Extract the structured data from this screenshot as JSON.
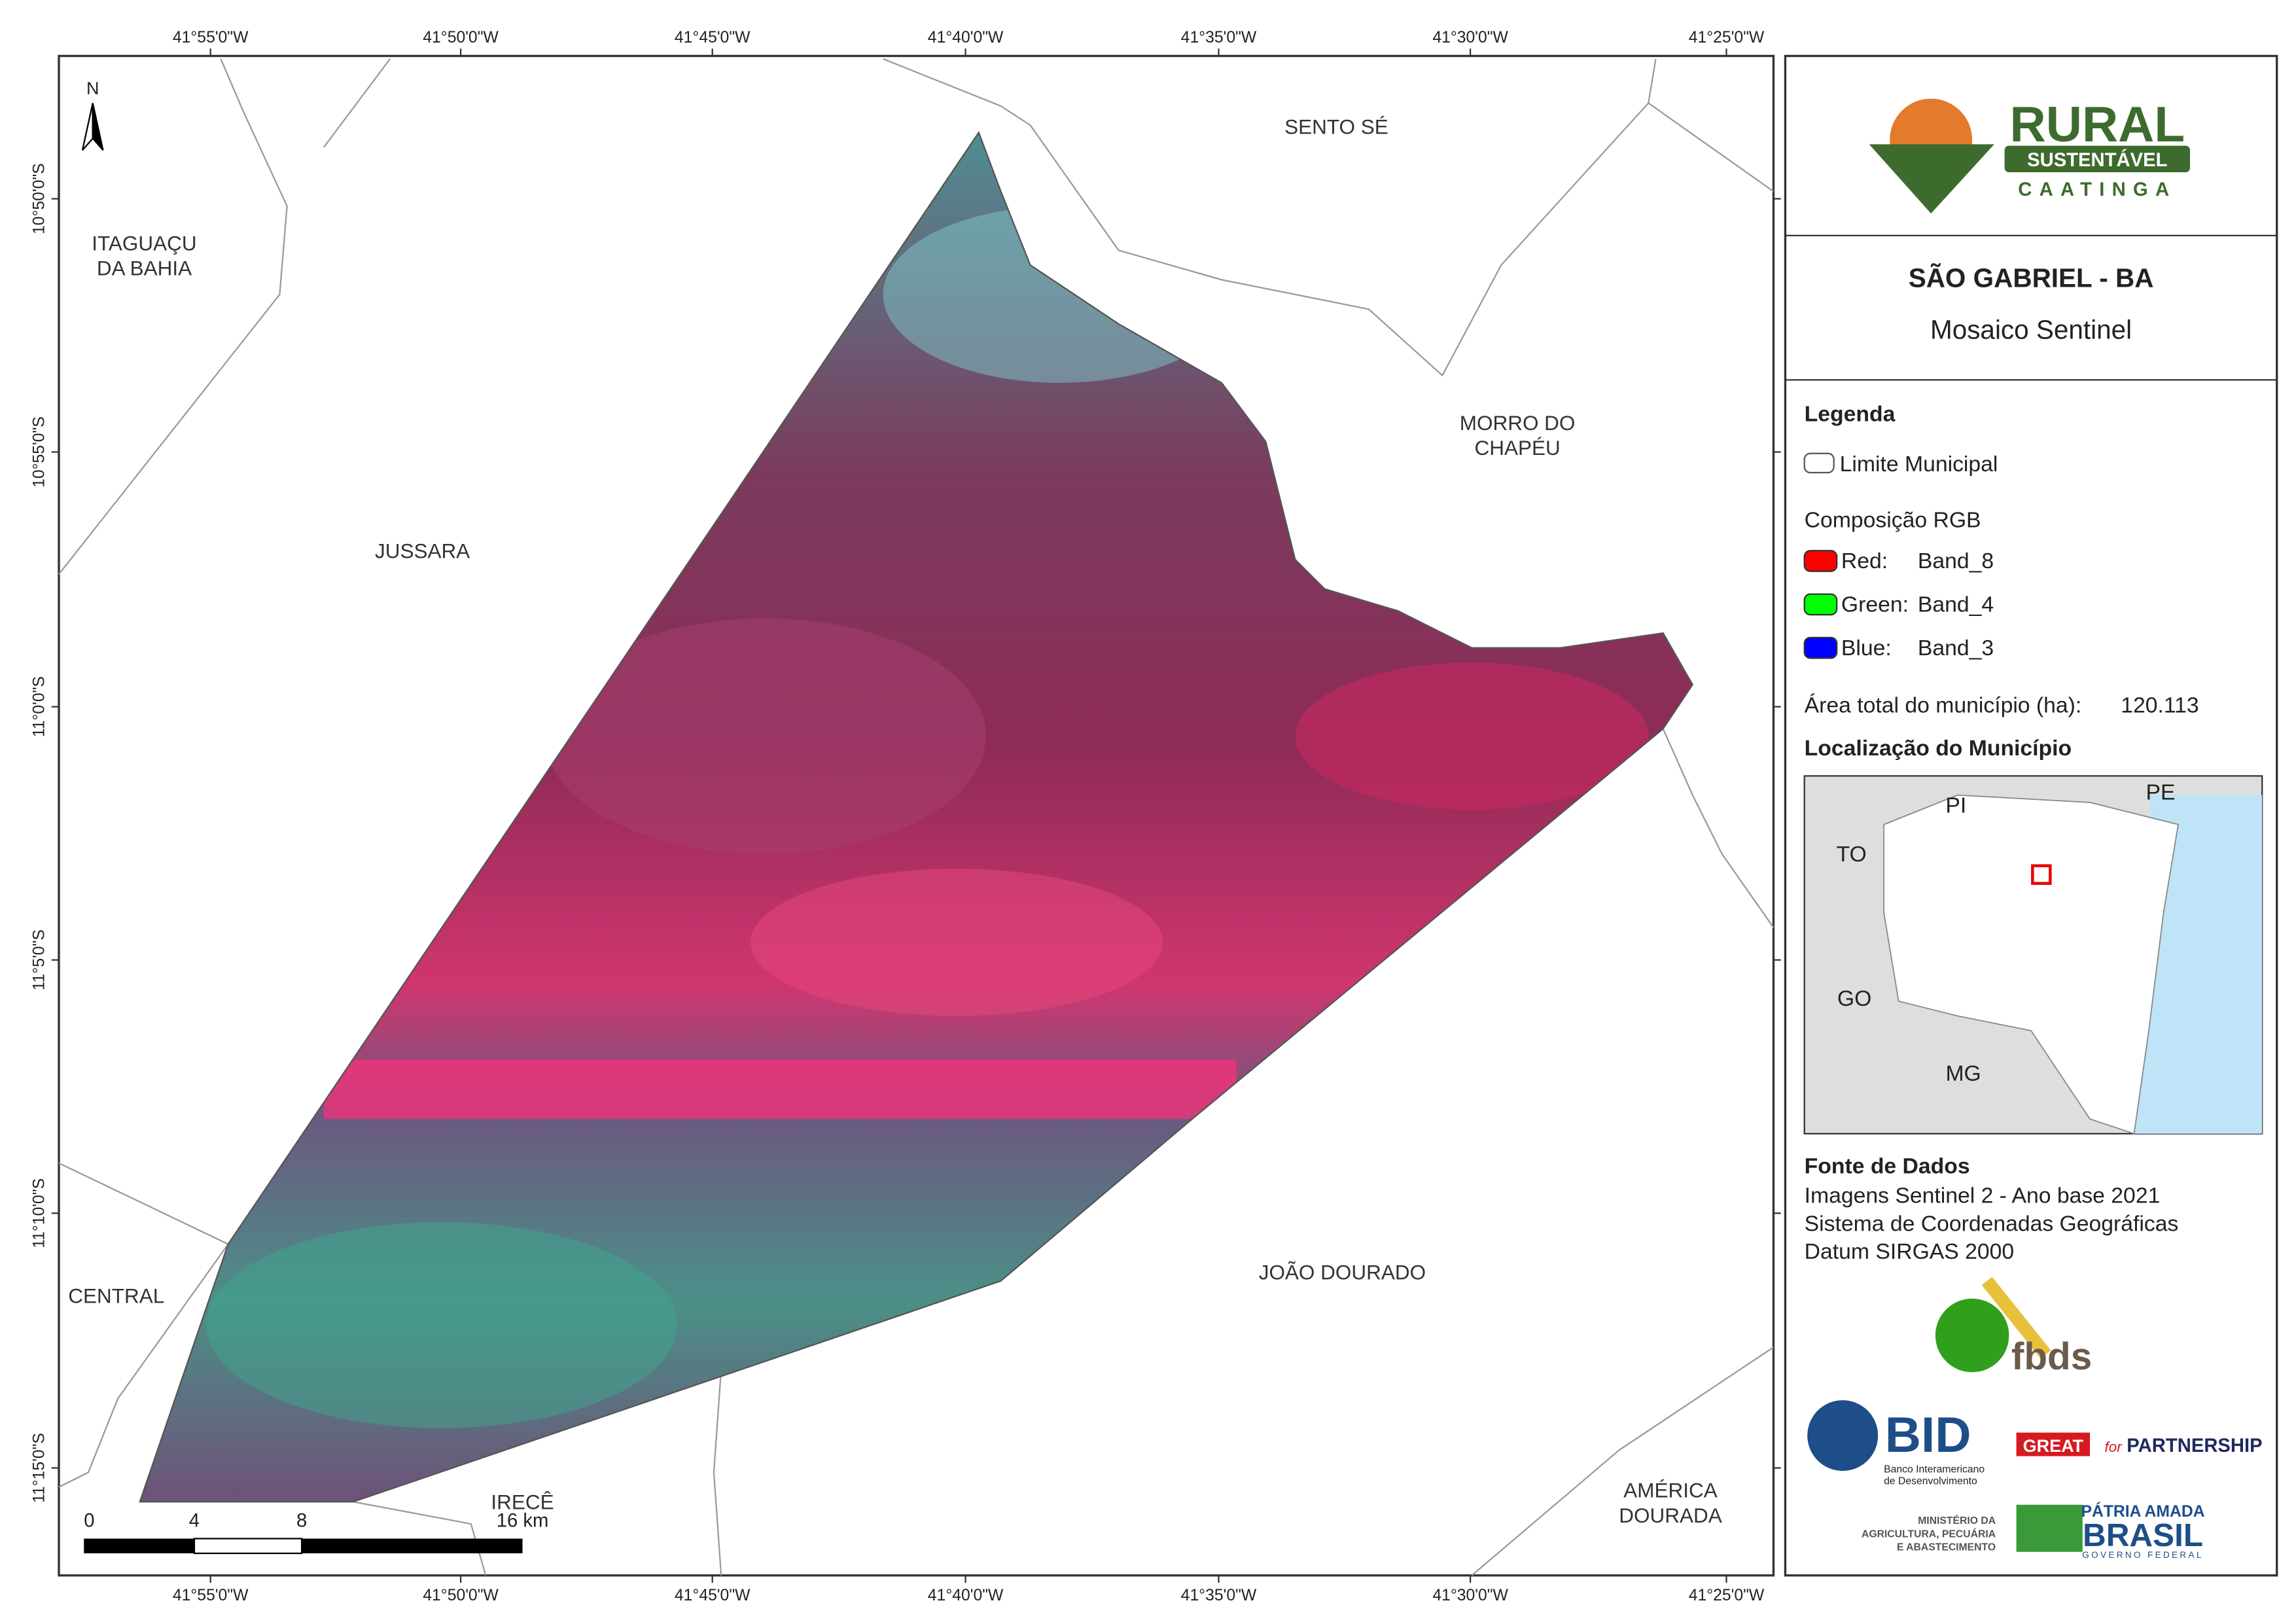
{
  "map": {
    "north": "N",
    "lon_ticks": [
      "41°55'0\"W",
      "41°50'0\"W",
      "41°45'0\"W",
      "41°40'0\"W",
      "41°35'0\"W",
      "41°30'0\"W",
      "41°25'0\"W"
    ],
    "lat_ticks": [
      "10°50'0\"S",
      "10°55'0\"S",
      "11°0'0\"S",
      "11°5'0\"S",
      "11°10'0\"S",
      "11°15'0\"S"
    ],
    "places": [
      [
        "SENTO SÉ"
      ],
      [
        "ITAGUAÇU",
        "DA BAHIA"
      ],
      [
        "MORRO DO",
        "CHAPÉU"
      ],
      [
        "JUSSARA"
      ],
      [
        "CENTRAL"
      ],
      [
        "JOÃO DOURADO"
      ],
      [
        "IRECÊ"
      ],
      [
        "AMÉRICA",
        "DOURADA"
      ]
    ],
    "scale": [
      "0",
      "4",
      "8",
      "16 km"
    ]
  },
  "panel": {
    "logo": {
      "title": "RURAL",
      "band": "SUSTENTÁVEL",
      "sub": "CAATINGA"
    },
    "title": "SÃO GABRIEL - BA",
    "subtitle": "Mosaico Sentinel",
    "legend": {
      "title": "Legenda",
      "boundary": "Limite Municipal",
      "rgb_title": "Composição RGB",
      "bands": [
        {
          "label": "Red:",
          "band": "Band_8",
          "color": "#ff0000"
        },
        {
          "label": "Green:",
          "band": "Band_4",
          "color": "#00ff00"
        },
        {
          "label": "Blue:",
          "band": "Band_3",
          "color": "#0000ff"
        }
      ]
    },
    "area": {
      "label": "Área total do município (ha):",
      "value": "120.113"
    },
    "location": {
      "title": "Localização do Município",
      "labels": [
        "PI",
        "PE",
        "TO",
        "GO",
        "MG"
      ]
    },
    "source": {
      "title": "Fonte de Dados",
      "lines": [
        "Imagens Sentinel 2 - Ano base 2021",
        "Sistema de Coordenadas Geográficas",
        "Datum SIRGAS 2000"
      ]
    },
    "logos": {
      "fbds": "fbds",
      "bid": "BID",
      "bid_name": [
        "Banco Interamericano",
        "de Desenvolvimento"
      ],
      "great": "GREAT",
      "for": "for",
      "partnership": "PARTNERSHIP",
      "ministry": [
        "MINISTÉRIO DA",
        "AGRICULTURA, PECUÁRIA",
        "E ABASTECIMENTO"
      ],
      "patria": "PÁTRIA AMADA",
      "brasil": "BRASIL",
      "gov": "GOVERNO FEDERAL"
    }
  }
}
